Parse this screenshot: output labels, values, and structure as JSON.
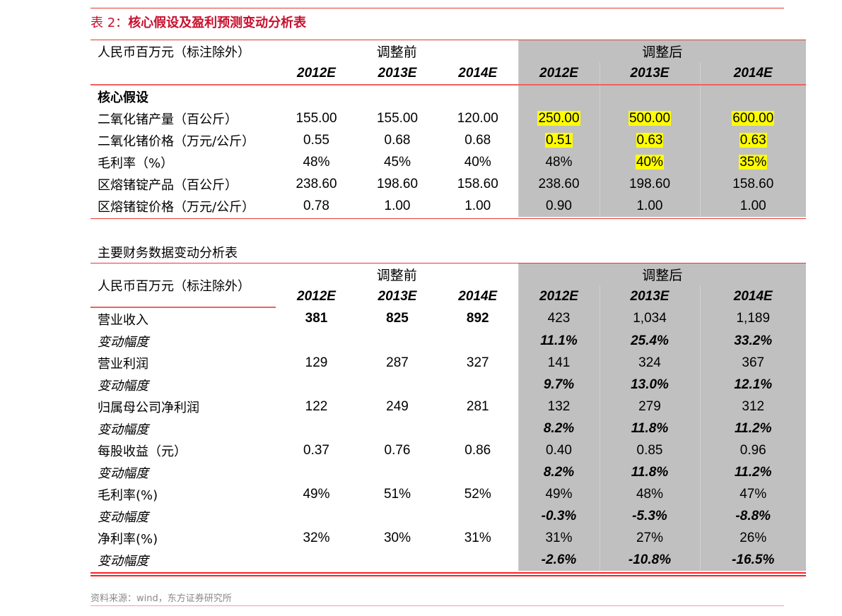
{
  "title_prefix": "表 2：",
  "title": "核心假设及盈利预测变动分析表",
  "unit_label": "人民币百万元（标注除外）",
  "before_label": "调整前",
  "after_label": "调整后",
  "years": [
    "2012E",
    "2013E",
    "2014E"
  ],
  "table1": {
    "section": "核心假设",
    "rows": [
      {
        "label": "二氧化锗产量（百公斤）",
        "before": [
          "155.00",
          "155.00",
          "120.00"
        ],
        "after": [
          "250.00",
          "500.00",
          "600.00"
        ],
        "hl": [
          true,
          true,
          true
        ]
      },
      {
        "label": "二氧化锗价格（万元/公斤）",
        "before": [
          "0.55",
          "0.68",
          "0.68"
        ],
        "after": [
          "0.51",
          "0.63",
          "0.63"
        ],
        "hl": [
          true,
          true,
          true
        ]
      },
      {
        "label": "毛利率（%）",
        "before": [
          "48%",
          "45%",
          "40%"
        ],
        "after": [
          "48%",
          "40%",
          "35%"
        ],
        "hl": [
          false,
          true,
          true
        ]
      },
      {
        "label": "区熔锗锭产品（百公斤）",
        "before": [
          "238.60",
          "198.60",
          "158.60"
        ],
        "after": [
          "238.60",
          "198.60",
          "158.60"
        ],
        "hl": [
          false,
          false,
          false
        ]
      },
      {
        "label": "区熔锗锭价格（万元/公斤）",
        "before": [
          "0.78",
          "1.00",
          "1.00"
        ],
        "after": [
          "0.90",
          "1.00",
          "1.00"
        ],
        "hl": [
          false,
          false,
          false
        ]
      }
    ],
    "highlight_color": "#ffff00"
  },
  "table2": {
    "title": "主要财务数据变动分析表",
    "rows": [
      {
        "label": "营业收入",
        "before": [
          "381",
          "825",
          "892"
        ],
        "after": [
          "423",
          "1,034",
          "1,189"
        ],
        "type": "bold"
      },
      {
        "label": "变动幅度",
        "before": [
          "",
          "",
          ""
        ],
        "after": [
          "11.1%",
          "25.4%",
          "33.2%"
        ],
        "type": "change"
      },
      {
        "label": "营业利润",
        "before": [
          "129",
          "287",
          "327"
        ],
        "after": [
          "141",
          "324",
          "367"
        ],
        "type": "normal"
      },
      {
        "label": "变动幅度",
        "before": [
          "",
          "",
          ""
        ],
        "after": [
          "9.7%",
          "13.0%",
          "12.1%"
        ],
        "type": "change"
      },
      {
        "label": "归属母公司净利润",
        "before": [
          "122",
          "249",
          "281"
        ],
        "after": [
          "132",
          "279",
          "312"
        ],
        "type": "normal"
      },
      {
        "label": "变动幅度",
        "before": [
          "",
          "",
          ""
        ],
        "after": [
          "8.2%",
          "11.8%",
          "11.2%"
        ],
        "type": "change"
      },
      {
        "label": "每股收益（元）",
        "before": [
          "0.37",
          "0.76",
          "0.86"
        ],
        "after": [
          "0.40",
          "0.85",
          "0.96"
        ],
        "type": "normal"
      },
      {
        "label": "变动幅度",
        "before": [
          "",
          "",
          ""
        ],
        "after": [
          "8.2%",
          "11.8%",
          "11.2%"
        ],
        "type": "change"
      },
      {
        "label": "毛利率(%)",
        "before": [
          "49%",
          "51%",
          "52%"
        ],
        "after": [
          "49%",
          "48%",
          "47%"
        ],
        "type": "normal"
      },
      {
        "label": "变动幅度",
        "before": [
          "",
          "",
          ""
        ],
        "after": [
          "-0.3%",
          "-5.3%",
          "-8.8%"
        ],
        "type": "change"
      },
      {
        "label": "净利率(%)",
        "before": [
          "32%",
          "30%",
          "31%"
        ],
        "after": [
          "31%",
          "27%",
          "26%"
        ],
        "type": "normal"
      },
      {
        "label": "变动幅度",
        "before": [
          "",
          "",
          ""
        ],
        "after": [
          "-2.6%",
          "-10.8%",
          "-16.5%"
        ],
        "type": "change"
      }
    ]
  },
  "source": "资料来源：wind，东方证券研究所",
  "accent_color": "#e53935",
  "title_color": "#c8102e",
  "shade_color": "#c0c0c0"
}
